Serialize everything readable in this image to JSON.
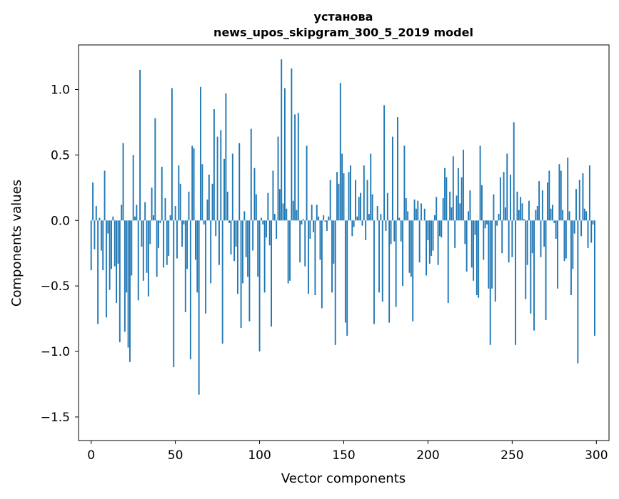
{
  "chart_data": {
    "type": "bar",
    "title_line1": "установа",
    "title_line2": "news_upos_skipgram_300_5_2019 model",
    "xlabel": "Vector components",
    "ylabel": "Components values",
    "xlim": [
      -7.5,
      307.5
    ],
    "ylim": [
      -1.68,
      1.34
    ],
    "xticks": [
      0,
      50,
      100,
      150,
      200,
      250,
      300
    ],
    "xtick_labels": [
      "0",
      "50",
      "100",
      "150",
      "200",
      "250",
      "300"
    ],
    "yticks": [
      -1.5,
      -1.0,
      -0.5,
      0.0,
      0.5,
      1.0
    ],
    "ytick_labels": [
      "−1.5",
      "−1.0",
      "−0.5",
      "0.0",
      "0.5",
      "1.0"
    ],
    "bar_color": "#1f77b4",
    "values": [
      -0.38,
      0.29,
      -0.22,
      0.11,
      -0.79,
      0.02,
      -0.23,
      -0.38,
      0.38,
      -0.74,
      -0.1,
      -0.53,
      -0.37,
      0.03,
      -0.35,
      -0.63,
      -0.33,
      -0.93,
      0.12,
      0.59,
      -0.85,
      -0.55,
      -0.97,
      -1.08,
      -0.42,
      0.5,
      0.03,
      0.12,
      -0.61,
      1.15,
      -0.2,
      -0.46,
      0.14,
      -0.4,
      -0.58,
      -0.18,
      0.25,
      0.04,
      0.78,
      -0.43,
      -0.21,
      -0.02,
      0.41,
      -0.36,
      0.17,
      -0.34,
      -0.27,
      0.04,
      1.01,
      -1.12,
      0.11,
      -0.29,
      0.42,
      0.28,
      -0.2,
      -0.03,
      -0.7,
      -0.37,
      0.22,
      -1.06,
      0.57,
      0.55,
      -0.3,
      -0.55,
      -1.33,
      1.02,
      0.43,
      -0.03,
      -0.71,
      0.16,
      0.35,
      -0.48,
      0.28,
      0.85,
      -0.12,
      0.64,
      -0.34,
      0.69,
      -0.94,
      0.47,
      0.97,
      0.22,
      -0.02,
      -0.26,
      0.51,
      -0.31,
      -0.2,
      -0.56,
      0.59,
      -0.82,
      -0.48,
      0.07,
      -0.28,
      -0.43,
      -0.77,
      0.7,
      -0.23,
      0.4,
      0.2,
      -0.43,
      -1.0,
      0.02,
      -0.03,
      -0.55,
      -0.13,
      0.21,
      -0.19,
      -0.81,
      0.38,
      0.05,
      -0.14,
      0.64,
      0.24,
      1.23,
      0.13,
      1.01,
      0.09,
      -0.48,
      -0.46,
      1.16,
      0.15,
      0.81,
      0.08,
      0.82,
      -0.32,
      -0.03,
      0.01,
      -0.35,
      0.57,
      -0.56,
      -0.14,
      0.12,
      -0.09,
      -0.57,
      0.12,
      0.03,
      -0.3,
      -0.67,
      0.04,
      -0.01,
      -0.08,
      0.03,
      0.31,
      -0.55,
      -0.33,
      -0.95,
      0.37,
      0.28,
      1.05,
      0.51,
      0.36,
      -0.78,
      -0.88,
      0.37,
      0.42,
      -0.12,
      -0.05,
      0.31,
      0.03,
      0.18,
      0.21,
      -0.04,
      0.42,
      -0.15,
      0.31,
      0.05,
      0.51,
      0.2,
      -0.79,
      0.0,
      0.11,
      -0.55,
      0.05,
      -0.62,
      0.88,
      -0.08,
      0.21,
      -0.78,
      -0.18,
      0.64,
      -0.16,
      -0.66,
      0.79,
      0.02,
      -0.16,
      -0.5,
      0.57,
      0.17,
      0.07,
      -0.4,
      -0.43,
      -0.77,
      0.16,
      0.09,
      0.15,
      -0.32,
      0.13,
      0.0,
      0.09,
      -0.42,
      -0.15,
      -0.33,
      -0.27,
      -0.23,
      0.04,
      0.18,
      -0.34,
      -0.12,
      -0.13,
      0.17,
      0.4,
      0.33,
      -0.63,
      0.22,
      0.1,
      0.49,
      -0.21,
      0.19,
      0.4,
      0.13,
      0.33,
      0.54,
      -0.18,
      -0.39,
      0.07,
      0.23,
      -0.36,
      -0.46,
      -0.11,
      -0.57,
      -0.59,
      0.57,
      0.27,
      -0.3,
      -0.06,
      -0.03,
      -0.52,
      -0.95,
      -0.52,
      0.2,
      -0.62,
      -0.04,
      0.05,
      0.33,
      -0.25,
      0.37,
      0.1,
      0.51,
      -0.32,
      0.35,
      -0.28,
      0.75,
      -0.95,
      0.22,
      0.08,
      0.18,
      0.13,
      0.01,
      -0.6,
      -0.34,
      0.15,
      -0.71,
      -0.25,
      -0.84,
      0.08,
      0.11,
      0.3,
      -0.28,
      0.23,
      -0.2,
      -0.76,
      0.29,
      0.38,
      0.09,
      0.12,
      -0.02,
      -0.14,
      -0.52,
      0.43,
      0.38,
      0.08,
      -0.31,
      -0.29,
      0.48,
      0.07,
      -0.57,
      -0.37,
      -0.1,
      0.24,
      -1.09,
      0.31,
      -0.12,
      0.36,
      0.09,
      0.07,
      -0.21,
      0.42,
      -0.17,
      -0.03,
      -0.88
    ]
  }
}
